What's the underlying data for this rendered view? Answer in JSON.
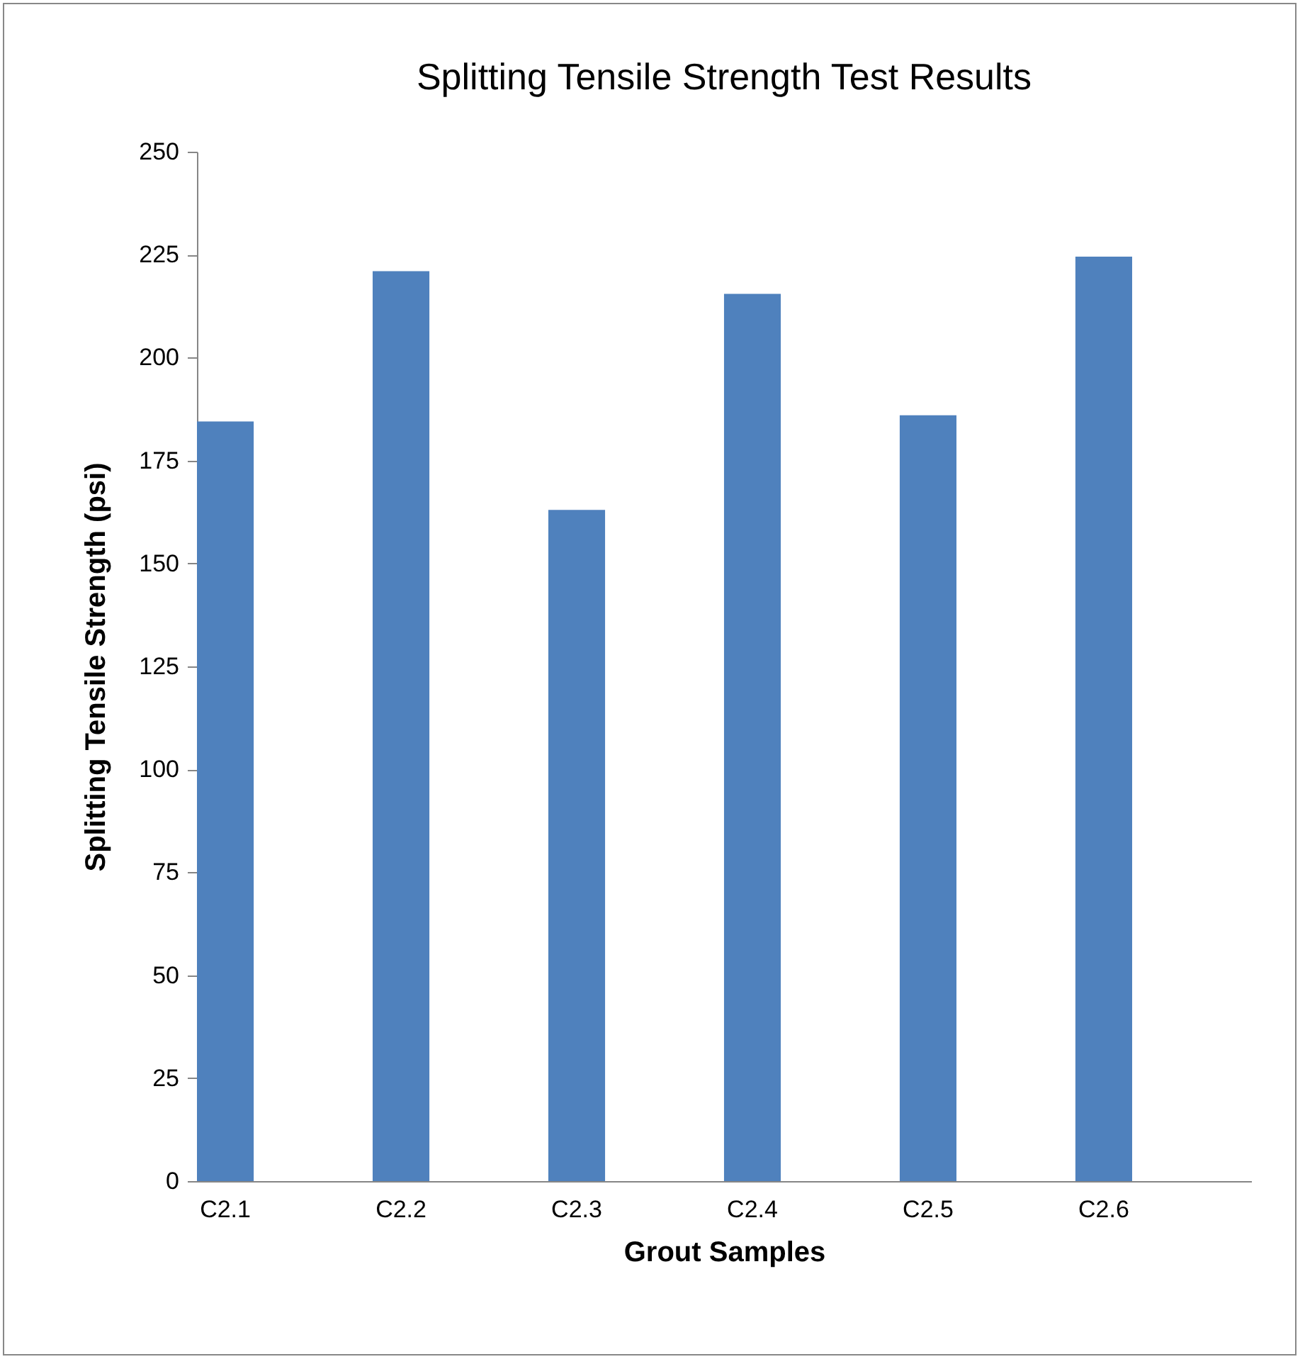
{
  "chart_data": {
    "type": "bar",
    "title": "Splitting Tensile Strength Test Results",
    "xlabel": "Grout Samples",
    "ylabel": "Splitting Tensile Strength (psi)",
    "categories": [
      "C2.1",
      "C2.2",
      "C2.3",
      "C2.4",
      "C2.5",
      "C2.6"
    ],
    "values": [
      184.5,
      221,
      163,
      215.5,
      186,
      224.5
    ],
    "color": "#4f81bd",
    "ylim": [
      0,
      250
    ],
    "yticks": [
      0,
      25,
      50,
      75,
      100,
      125,
      150,
      175,
      200,
      225,
      250
    ],
    "grid": false
  }
}
